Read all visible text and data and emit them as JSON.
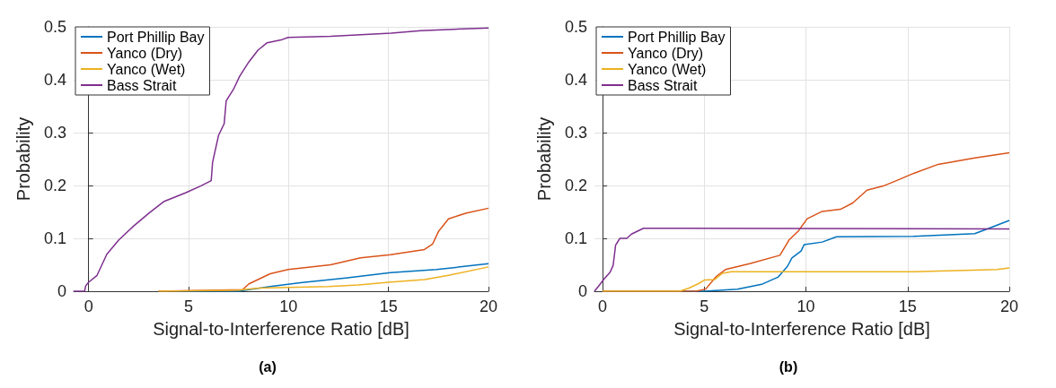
{
  "chart_data": [
    {
      "type": "line",
      "xlabel": "Signal-to-Interference Ratio [dB]",
      "ylabel": "Probability",
      "annotations": [
        "(a)"
      ],
      "xlim": [
        -0.75,
        20
      ],
      "xticks": [
        0,
        5,
        10,
        15,
        20
      ],
      "ylim": [
        0,
        0.5
      ],
      "yticks": [
        0,
        0.1,
        0.2,
        0.3,
        0.4,
        0.5
      ],
      "grid": true,
      "legend": "top left",
      "series": [
        {
          "name": "Port Phillip Bay",
          "color": "#0072bd",
          "x": [
            3.5,
            7.5,
            9.08,
            10.6,
            12.86,
            15.1,
            17.4,
            20
          ],
          "values": [
            0,
            0,
            0.009,
            0.016,
            0.025,
            0.035,
            0.041,
            0.052
          ]
        },
        {
          "name": "Yanco (Dry)",
          "color": "#d95319",
          "x": [
            3.5,
            7.7,
            8.02,
            9.08,
            9.98,
            12.1,
            13.6,
            15.1,
            16.8,
            17.2,
            17.5,
            18.0,
            18.9,
            20
          ],
          "values": [
            0,
            0.003,
            0.014,
            0.033,
            0.041,
            0.05,
            0.063,
            0.069,
            0.079,
            0.089,
            0.113,
            0.137,
            0.148,
            0.157
          ]
        },
        {
          "name": "Yanco (Wet)",
          "color": "#edb120",
          "x": [
            3.5,
            7.5,
            8.5,
            12,
            13.5,
            15,
            16.8,
            18,
            20
          ],
          "values": [
            0,
            0.002,
            0.006,
            0.009,
            0.012,
            0.017,
            0.022,
            0.03,
            0.046
          ]
        },
        {
          "name": "Bass Strait",
          "color": "#7e2f8e",
          "x": [
            -0.75,
            -0.2,
            -0.15,
            0,
            0.42,
            0.91,
            1.51,
            2.27,
            3.03,
            3.78,
            4.84,
            5.6,
            6.13,
            6.2,
            6.5,
            6.78,
            6.88,
            7.26,
            7.56,
            8.02,
            8.47,
            8.93,
            9.68,
            9.98,
            12.1,
            15.13,
            16.6,
            20
          ],
          "values": [
            0,
            0,
            0.01,
            0.017,
            0.03,
            0.07,
            0.097,
            0.124,
            0.148,
            0.17,
            0.186,
            0.199,
            0.209,
            0.244,
            0.295,
            0.317,
            0.36,
            0.383,
            0.407,
            0.434,
            0.456,
            0.47,
            0.476,
            0.48,
            0.482,
            0.488,
            0.493,
            0.498
          ]
        }
      ]
    },
    {
      "type": "line",
      "xlabel": "Signal-to-Interference Ratio [dB]",
      "ylabel": "Probability",
      "annotations": [
        "(b)"
      ],
      "xlim": [
        -0.4,
        20
      ],
      "xticks": [
        0,
        5,
        10,
        15,
        20
      ],
      "ylim": [
        0,
        0.5
      ],
      "yticks": [
        0,
        0.1,
        0.2,
        0.3,
        0.4,
        0.5
      ],
      "grid": true,
      "legend": "top left",
      "series": [
        {
          "name": "Port Phillip Bay",
          "color": "#0072bd",
          "x": [
            0,
            5.0,
            6.63,
            7.82,
            8.64,
            9.09,
            9.31,
            9.76,
            9.91,
            10.8,
            11.5,
            15.3,
            18.3,
            19.0,
            20
          ],
          "values": [
            0,
            0,
            0.004,
            0.013,
            0.027,
            0.047,
            0.063,
            0.076,
            0.088,
            0.093,
            0.103,
            0.104,
            0.109,
            0.119,
            0.134
          ]
        },
        {
          "name": "Yanco (Dry)",
          "color": "#d95319",
          "x": [
            0,
            4.6,
            5.07,
            5.59,
            6.04,
            7.23,
            8.72,
            9.17,
            9.61,
            10.06,
            10.8,
            11.7,
            12.3,
            13.0,
            13.8,
            14.5,
            15.3,
            16.5,
            18.3,
            20
          ],
          "values": [
            0,
            0,
            0.004,
            0.028,
            0.041,
            0.052,
            0.068,
            0.097,
            0.113,
            0.137,
            0.151,
            0.155,
            0.167,
            0.191,
            0.199,
            0.21,
            0.223,
            0.24,
            0.252,
            0.262
          ]
        },
        {
          "name": "Yanco (Wet)",
          "color": "#edb120",
          "x": [
            0,
            3.8,
            4.25,
            4.7,
            5.0,
            5.51,
            5.89,
            6.33,
            15.3,
            19.4,
            20
          ],
          "values": [
            0,
            0,
            0.006,
            0.014,
            0.021,
            0.022,
            0.034,
            0.037,
            0.037,
            0.041,
            0.044
          ]
        },
        {
          "name": "Bass Strait",
          "color": "#7e2f8e",
          "x": [
            -0.4,
            -0.15,
            0.05,
            0.37,
            0.52,
            0.64,
            0.85,
            1.19,
            1.42,
            2.01,
            20
          ],
          "values": [
            0,
            0.012,
            0.022,
            0.036,
            0.049,
            0.087,
            0.1,
            0.1,
            0.108,
            0.119,
            0.118
          ]
        }
      ]
    }
  ]
}
